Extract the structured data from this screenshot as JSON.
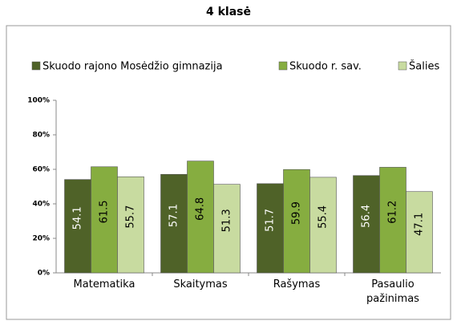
{
  "chart_data": {
    "type": "bar",
    "title": "4 klasė",
    "categories": [
      "Matematika",
      "Skaitymas",
      "Rašymas",
      "Pasaulio pažinimas"
    ],
    "series": [
      {
        "name": "Skuodo rajono Mosėdžio gimnazija",
        "color": "#4f6228",
        "values": [
          54.1,
          57.1,
          51.7,
          56.4
        ]
      },
      {
        "name": "Skuodo r. sav.",
        "color": "#86ad40",
        "values": [
          61.5,
          64.8,
          59.9,
          61.2
        ]
      },
      {
        "name": "Šalies",
        "color": "#c8dba0",
        "values": [
          55.7,
          51.3,
          55.4,
          47.1
        ]
      }
    ],
    "ylim": [
      0,
      100
    ],
    "yticks": [
      {
        "value": 0,
        "label": "0%"
      },
      {
        "value": 20,
        "label": "20%"
      },
      {
        "value": 40,
        "label": "40%"
      },
      {
        "value": 60,
        "label": "60%"
      },
      {
        "value": 80,
        "label": "80%"
      },
      {
        "value": 100,
        "label": "100%"
      }
    ],
    "legend": "top"
  }
}
